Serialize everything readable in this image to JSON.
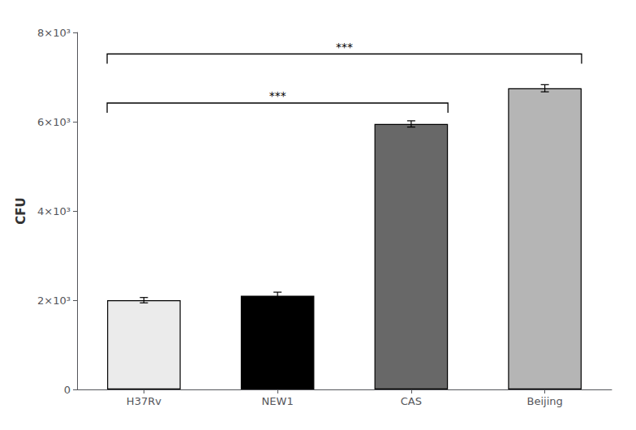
{
  "chart_data": {
    "type": "bar",
    "categories": [
      "H37Rv",
      "NEW1",
      "CAS",
      "Beijing"
    ],
    "values": [
      2000,
      2100,
      5950,
      6750
    ],
    "errors": [
      60,
      80,
      70,
      80
    ],
    "colors": [
      "#ebebeb",
      "#000000",
      "#686868",
      "#b5b5b5"
    ],
    "ylabel": "CFU",
    "ylim": [
      0,
      8000
    ],
    "yticks": [
      0,
      {
        "value": 2000,
        "label": "2×10³"
      },
      {
        "value": 4000,
        "label": "4×10³"
      },
      {
        "value": 6000,
        "label": "6×10³"
      },
      {
        "value": 8000,
        "label": "8×10³"
      }
    ],
    "annotations": [
      {
        "type": "bracket",
        "from": "H37Rv",
        "to": "CAS",
        "y": 6200,
        "label": "***"
      },
      {
        "type": "bracket",
        "from": "H37Rv",
        "to": "Beijing",
        "y": 7300,
        "label": "***"
      }
    ],
    "grid": false
  }
}
